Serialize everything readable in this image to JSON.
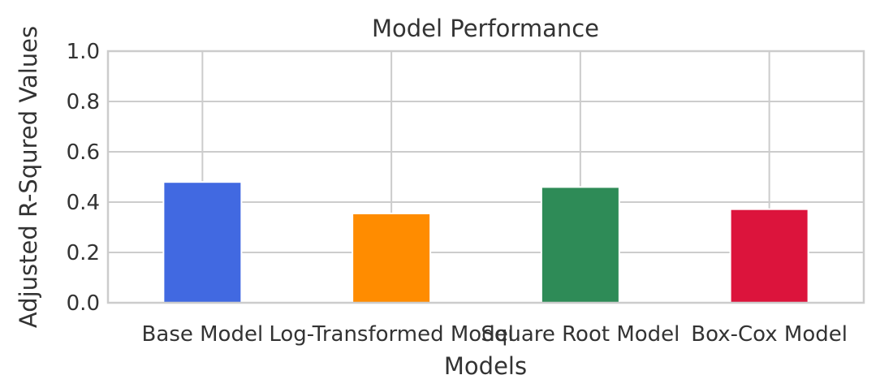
{
  "chart_data": {
    "type": "bar",
    "title": "Model Performance",
    "xlabel": "Models",
    "ylabel": "Adjusted R-Squred Values",
    "categories": [
      "Base Model",
      "Log-Transformed Model",
      "Square Root Model",
      "Box-Cox Model"
    ],
    "values": [
      0.48,
      0.355,
      0.46,
      0.372
    ],
    "colors": [
      "#4169e1",
      "#ff8c00",
      "#2e8b57",
      "#dc143c"
    ],
    "ylim": [
      0,
      1.0
    ],
    "yticks": [
      "0.0",
      "0.2",
      "0.4",
      "0.6",
      "0.8",
      "1.0"
    ],
    "grid": true,
    "legend": "none"
  }
}
